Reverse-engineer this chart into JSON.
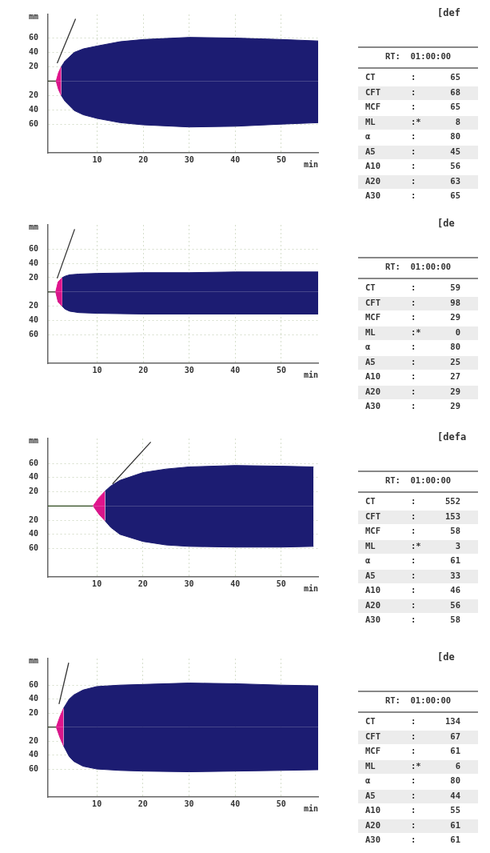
{
  "chart_data": [
    {
      "type": "area",
      "xlabel": "min",
      "ylabel": "mm",
      "xlim": [
        -0.7,
        58
      ],
      "ylim": [
        -100,
        93
      ],
      "xticks": [
        10,
        20,
        30,
        40,
        50
      ],
      "yticks": [
        60,
        40,
        20,
        {
          "value": -20,
          "label": "20"
        },
        {
          "value": -40,
          "label": "40"
        },
        {
          "value": -60,
          "label": "60"
        }
      ],
      "grid": true,
      "legend": false,
      "series": [
        {
          "type": "area",
          "color": "#1c1c72",
          "x": [
            2.2,
            3,
            5,
            7,
            10,
            15,
            20,
            30,
            40,
            50,
            58
          ],
          "values": [
            20,
            28,
            40,
            45,
            49,
            55,
            58,
            61,
            60,
            58,
            56
          ]
        },
        {
          "type": "area",
          "color": "#1c1c72",
          "x": [
            2.2,
            3,
            5,
            7,
            10,
            15,
            20,
            30,
            40,
            50,
            58
          ],
          "values": [
            -20,
            -28,
            -41,
            -47,
            -52,
            -58,
            -61,
            -64,
            -63,
            -60,
            -58
          ]
        },
        {
          "type": "area",
          "color": "#e0148c",
          "x": [
            1.08,
            1.6,
            2.2
          ],
          "values": [
            0,
            12,
            20
          ]
        },
        {
          "type": "area",
          "color": "#d8168a",
          "x": [
            1.08,
            1.6,
            2.2
          ],
          "values": [
            0,
            -12,
            -20
          ]
        },
        {
          "type": "line",
          "color": "#2e3a22",
          "x": [
            -0.7,
            1.08
          ],
          "values": [
            0,
            0
          ]
        },
        {
          "type": "line",
          "color": "#333333",
          "x": [
            1.3,
            5.3
          ],
          "values": [
            25,
            87
          ]
        }
      ]
    },
    {
      "type": "other",
      "title": "[def",
      "subtitle": "RT:  01:00:00",
      "cell_labels": [
        [
          "CT",
          ":",
          "65"
        ],
        [
          "CFT",
          ":",
          "68"
        ],
        [
          "MCF",
          ":",
          "65"
        ],
        [
          "ML",
          ":*",
          "8"
        ],
        [
          "α",
          ":",
          "80"
        ],
        [
          "A5",
          ":",
          "45"
        ],
        [
          "A10",
          ":",
          "56"
        ],
        [
          "A20",
          ":",
          "63"
        ],
        [
          "A30",
          ":",
          "65"
        ]
      ]
    },
    {
      "type": "area",
      "xlabel": "min",
      "ylabel": "mm",
      "xlim": [
        -0.7,
        58
      ],
      "ylim": [
        -100,
        94
      ],
      "xticks": [
        10,
        20,
        30,
        40,
        50
      ],
      "yticks": [
        60,
        40,
        20,
        {
          "value": -20,
          "label": "20"
        },
        {
          "value": -40,
          "label": "40"
        },
        {
          "value": -60,
          "label": "60"
        }
      ],
      "grid": true,
      "legend": false,
      "series": [
        {
          "type": "area",
          "color": "#1c1c72",
          "x": [
            2.4,
            3,
            4,
            6,
            10,
            20,
            30,
            40,
            50,
            58
          ],
          "values": [
            20,
            22,
            24,
            25,
            26,
            27,
            27,
            28,
            28,
            28
          ]
        },
        {
          "type": "area",
          "color": "#1c1c72",
          "x": [
            2.4,
            3,
            4,
            6,
            10,
            20,
            30,
            40,
            50,
            58
          ],
          "values": [
            -20,
            -24,
            -27,
            -29,
            -30,
            -31,
            -31,
            -31,
            -31,
            -31
          ]
        },
        {
          "type": "area",
          "color": "#e0148c",
          "x": [
            0.98,
            1.5,
            2.4
          ],
          "values": [
            0,
            14,
            20
          ]
        },
        {
          "type": "area",
          "color": "#d8168a",
          "x": [
            0.98,
            1.5,
            2.4
          ],
          "values": [
            0,
            -14,
            -20
          ]
        },
        {
          "type": "line",
          "color": "#2e3a22",
          "x": [
            -0.7,
            0.98
          ],
          "values": [
            0,
            0
          ]
        },
        {
          "type": "line",
          "color": "#333333",
          "x": [
            1.3,
            5.1
          ],
          "values": [
            19,
            88
          ]
        }
      ]
    },
    {
      "type": "other",
      "title": "[de",
      "subtitle": "RT:  01:00:00",
      "cell_labels": [
        [
          "CT",
          ":",
          "59"
        ],
        [
          "CFT",
          ":",
          "98"
        ],
        [
          "MCF",
          ":",
          "29"
        ],
        [
          "ML",
          ":*",
          "0"
        ],
        [
          "α",
          ":",
          "80"
        ],
        [
          "A5",
          ":",
          "25"
        ],
        [
          "A10",
          ":",
          "27"
        ],
        [
          "A20",
          ":",
          "29"
        ],
        [
          "A30",
          ":",
          "29"
        ]
      ]
    },
    {
      "type": "area",
      "xlabel": "min",
      "ylabel": "mm",
      "xlim": [
        -0.6,
        58
      ],
      "ylim": [
        -100,
        95
      ],
      "xticks": [
        10,
        20,
        30,
        40,
        50
      ],
      "yticks": [
        60,
        40,
        20,
        {
          "value": -20,
          "label": "20"
        },
        {
          "value": -40,
          "label": "40"
        },
        {
          "value": -60,
          "label": "60"
        }
      ],
      "grid": true,
      "legend": false,
      "series": [
        {
          "type": "area",
          "color": "#1c1c72",
          "x": [
            11.8,
            13,
            15,
            20,
            25,
            30,
            40,
            50,
            57
          ],
          "values": [
            21,
            28,
            36,
            47,
            52,
            55,
            57,
            56,
            55
          ]
        },
        {
          "type": "area",
          "color": "#1c1c72",
          "x": [
            11.8,
            13,
            15,
            20,
            25,
            30,
            40,
            50,
            57
          ],
          "values": [
            -21,
            -30,
            -40,
            -50,
            -55,
            -57,
            -58,
            -58,
            -57
          ]
        },
        {
          "type": "area",
          "color": "#e0148c",
          "x": [
            9.2,
            10.5,
            11.8
          ],
          "values": [
            0,
            12,
            21
          ]
        },
        {
          "type": "area",
          "color": "#d8168a",
          "x": [
            9.2,
            10.5,
            11.8
          ],
          "values": [
            0,
            -12,
            -21
          ]
        },
        {
          "type": "line",
          "color": "#2e4a1e",
          "x": [
            -0.6,
            9.2
          ],
          "values": [
            0,
            0
          ]
        },
        {
          "type": "line",
          "color": "#333333",
          "x": [
            13.4,
            21.7
          ],
          "values": [
            31,
            90
          ]
        }
      ]
    },
    {
      "type": "other",
      "title": "[defa",
      "subtitle": "RT:  01:00:00",
      "cell_labels": [
        [
          "CT",
          ":",
          "552"
        ],
        [
          "CFT",
          ":",
          "153"
        ],
        [
          "MCF",
          ":",
          "58"
        ],
        [
          "ML",
          ":*",
          "3"
        ],
        [
          "α",
          ":",
          "61"
        ],
        [
          "A5",
          ":",
          "33"
        ],
        [
          "A10",
          ":",
          "46"
        ],
        [
          "A20",
          ":",
          "56"
        ],
        [
          "A30",
          ":",
          "58"
        ]
      ]
    },
    {
      "type": "area",
      "xlabel": "min",
      "ylabel": "mm",
      "xlim": [
        -0.6,
        58
      ],
      "ylim": [
        -100,
        98
      ],
      "xticks": [
        10,
        20,
        30,
        40,
        50
      ],
      "yticks": [
        60,
        40,
        20,
        {
          "value": -20,
          "label": "20"
        },
        {
          "value": -40,
          "label": "40"
        },
        {
          "value": -60,
          "label": "60"
        }
      ],
      "grid": true,
      "legend": false,
      "series": [
        {
          "type": "area",
          "color": "#1c1c72",
          "x": [
            2.8,
            4,
            5,
            7,
            10,
            15,
            20,
            30,
            40,
            50,
            58
          ],
          "values": [
            27,
            40,
            46,
            53,
            58,
            60,
            61,
            63,
            62,
            60,
            59
          ]
        },
        {
          "type": "area",
          "color": "#1c1c72",
          "x": [
            2.8,
            4,
            5,
            7,
            10,
            15,
            20,
            30,
            40,
            50,
            58
          ],
          "values": [
            -27,
            -42,
            -49,
            -56,
            -60,
            -62,
            -63,
            -64,
            -63,
            -62,
            -61
          ]
        },
        {
          "type": "area",
          "color": "#e0148c",
          "x": [
            1.2,
            2.0,
            2.8
          ],
          "values": [
            0,
            15,
            27
          ]
        },
        {
          "type": "area",
          "color": "#d8168a",
          "x": [
            1.2,
            2.0,
            2.8
          ],
          "values": [
            0,
            -15,
            -27
          ]
        },
        {
          "type": "line",
          "color": "#2e3a22",
          "x": [
            -0.6,
            1.2
          ],
          "values": [
            0,
            0
          ]
        },
        {
          "type": "line",
          "color": "#333333",
          "x": [
            1.8,
            3.9
          ],
          "values": [
            33,
            92
          ]
        }
      ]
    },
    {
      "type": "other",
      "title": "[de",
      "subtitle": "RT:  01:00:00",
      "cell_labels": [
        [
          "CT",
          ":",
          "134"
        ],
        [
          "CFT",
          ":",
          "67"
        ],
        [
          "MCF",
          ":",
          "61"
        ],
        [
          "ML",
          ":*",
          "6"
        ],
        [
          "α",
          ":",
          "80"
        ],
        [
          "A5",
          ":",
          "44"
        ],
        [
          "A10",
          ":",
          "55"
        ],
        [
          "A20",
          ":",
          "61"
        ],
        [
          "A30",
          ":",
          "61"
        ]
      ]
    }
  ]
}
